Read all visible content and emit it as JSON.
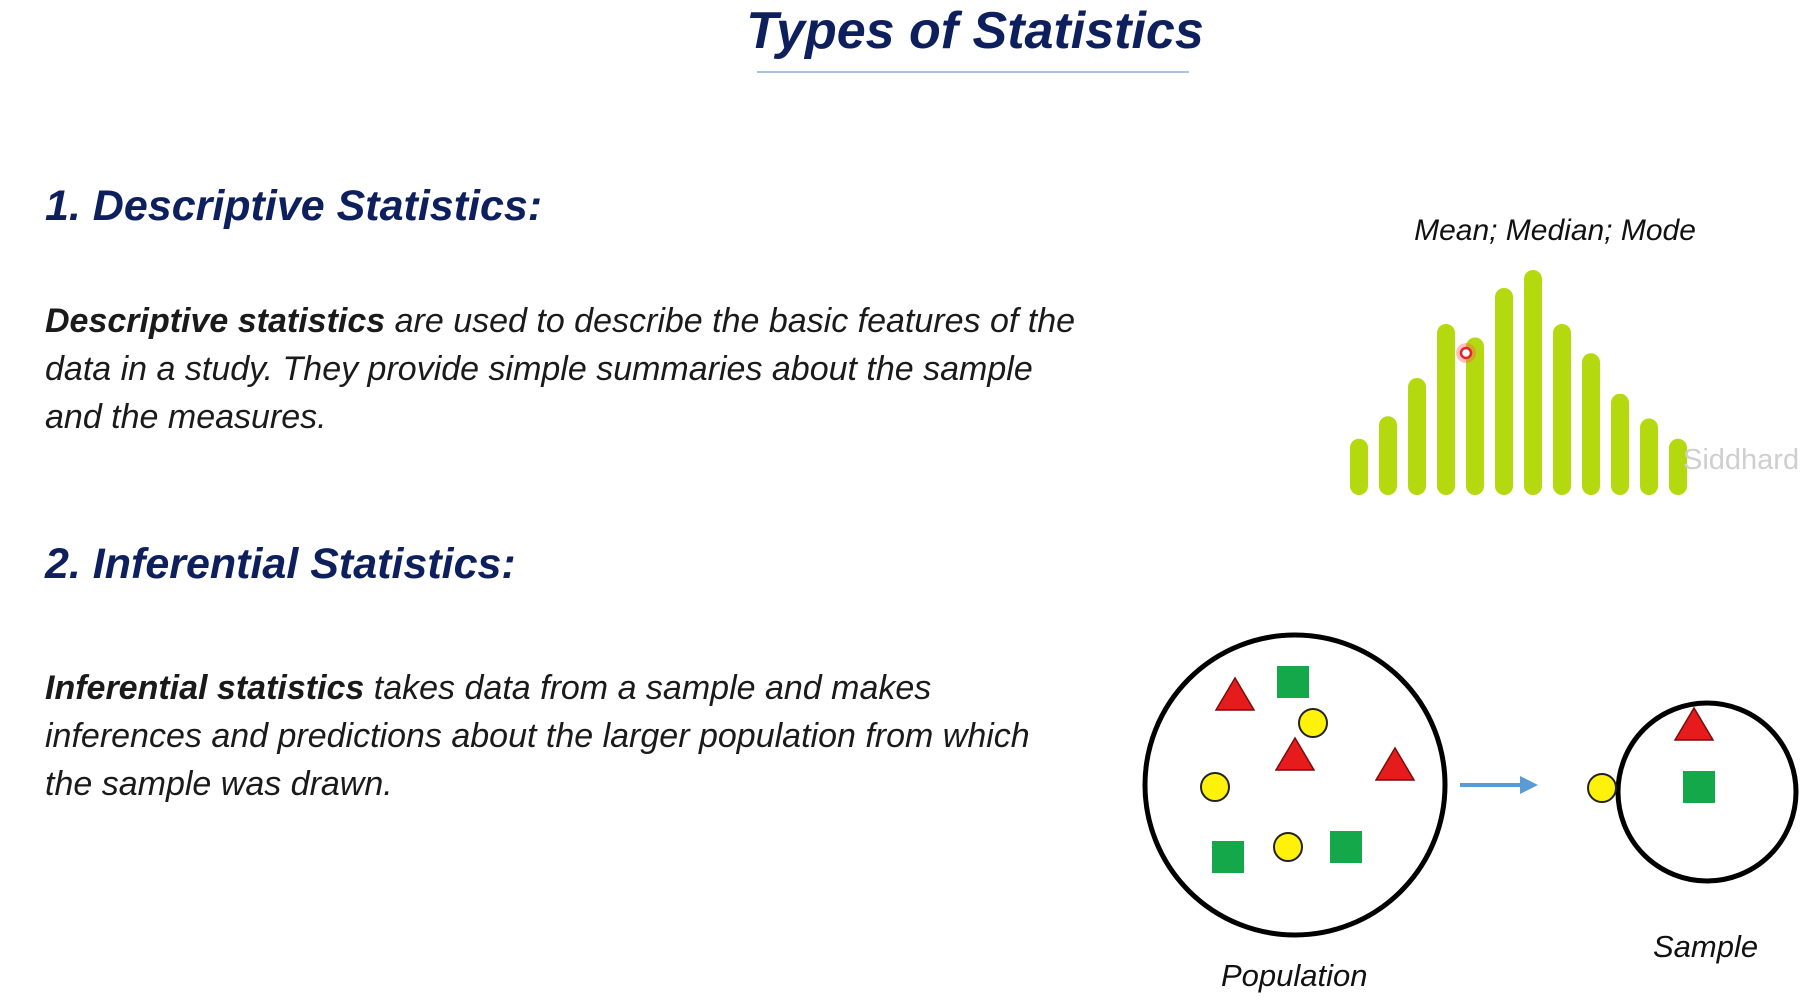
{
  "title": "Types of Statistics",
  "sections": [
    {
      "heading": "1. Descriptive Statistics:",
      "term": "Descriptive statistics",
      "text": " are used to describe the basic features of the data in a study. They provide simple summaries about the sample and the measures."
    },
    {
      "heading": "2. Inferential Statistics:",
      "term": "Inferential statistics",
      "text": " takes data from a sample and makes inferences and predictions about the larger population from which the sample was drawn."
    }
  ],
  "descriptive_figure": {
    "label": "Mean; Median; Mode",
    "bar_color": "#b5d90f",
    "bar_relative_heights": [
      0.25,
      0.35,
      0.52,
      0.76,
      0.7,
      0.92,
      1.0,
      0.76,
      0.63,
      0.45,
      0.34,
      0.25
    ],
    "cursor_color": "#e0242a"
  },
  "watermark": "Siddhard",
  "inferential_figure": {
    "population_label": "Population",
    "sample_label": "Sample",
    "arrow_color": "#5b9bd5",
    "shape_colors": {
      "triangle": "#e61c1c",
      "circle": "#fff20a",
      "square": "#14a84b"
    },
    "population_items": [
      "triangle",
      "square",
      "circle",
      "triangle",
      "triangle",
      "circle",
      "square",
      "circle",
      "square"
    ],
    "sample_items": [
      "triangle",
      "circle",
      "square"
    ]
  }
}
